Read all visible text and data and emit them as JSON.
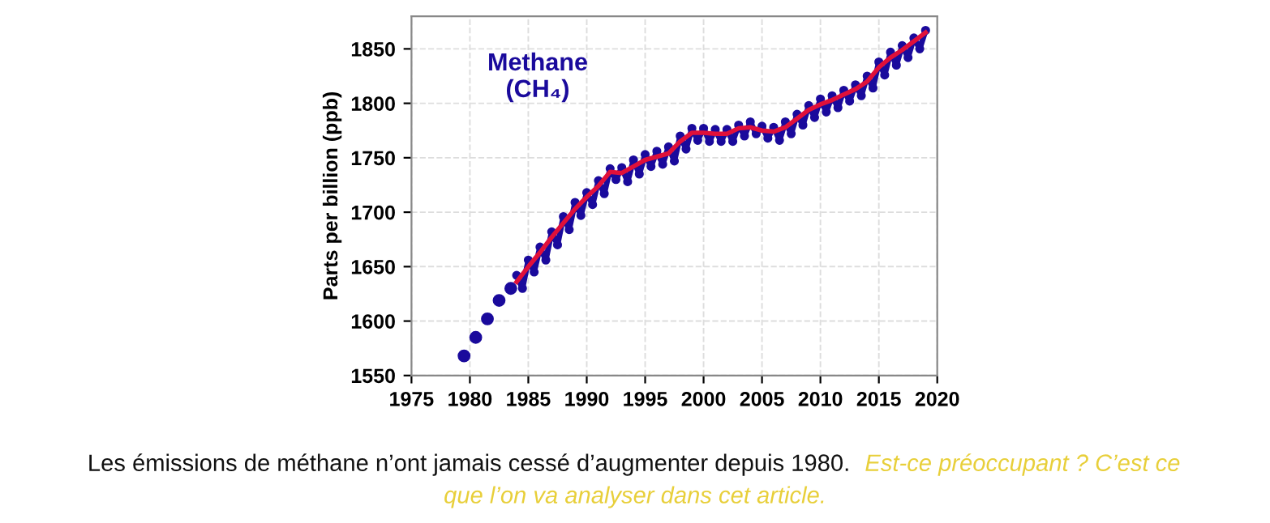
{
  "chart_data": {
    "type": "line",
    "ylabel": "Parts per billion (ppb)",
    "annotations": [
      "Methane\n(CH₄)",
      "Les émissions de méthane n’ont jamais cessé d’augmenter depuis 1980.",
      "Est-ce préoccupant ? C’est ce que l’on va analyser dans cet article."
    ],
    "series": [
      {
        "type": "scatter",
        "color": "#1a0a9c",
        "x": [
          1979.5,
          1980.5,
          1981.5,
          1982.5,
          1983.5
        ],
        "values": [
          1568,
          1585,
          1602,
          1619,
          1630
        ]
      },
      {
        "color": "#1a0a9c",
        "marker": "circle",
        "x": [
          1984.0,
          1984.5,
          1985.0,
          1985.5,
          1986.0,
          1986.5,
          1987.0,
          1987.5,
          1988.0,
          1988.5,
          1989.0,
          1989.5,
          1990.0,
          1990.5,
          1991.0,
          1991.5,
          1992.0,
          1992.5,
          1993.0,
          1993.5,
          1994.0,
          1994.5,
          1995.0,
          1995.5,
          1996.0,
          1996.5,
          1997.0,
          1997.5,
          1998.0,
          1998.5,
          1999.0,
          1999.5,
          2000.0,
          2000.5,
          2001.0,
          2001.5,
          2002.0,
          2002.5,
          2003.0,
          2003.5,
          2004.0,
          2004.5,
          2005.0,
          2005.5,
          2006.0,
          2006.5,
          2007.0,
          2007.5,
          2008.0,
          2008.5,
          2009.0,
          2009.5,
          2010.0,
          2010.5,
          2011.0,
          2011.5,
          2012.0,
          2012.5,
          2013.0,
          2013.5,
          2014.0,
          2014.5,
          2015.0,
          2015.5,
          2016.0,
          2016.5,
          2017.0,
          2017.5,
          2018.0,
          2018.5,
          2019.0
        ],
        "values": [
          1642,
          1630,
          1656,
          1645,
          1668,
          1656,
          1682,
          1670,
          1696,
          1684,
          1709,
          1697,
          1718,
          1707,
          1729,
          1717,
          1740,
          1730,
          1741,
          1728,
          1748,
          1735,
          1753,
          1742,
          1756,
          1744,
          1760,
          1747,
          1770,
          1758,
          1777,
          1766,
          1777,
          1765,
          1776,
          1765,
          1776,
          1765,
          1780,
          1770,
          1783,
          1772,
          1779,
          1768,
          1778,
          1766,
          1783,
          1772,
          1790,
          1780,
          1798,
          1787,
          1804,
          1792,
          1807,
          1796,
          1812,
          1802,
          1817,
          1807,
          1825,
          1814,
          1838,
          1826,
          1847,
          1835,
          1853,
          1842,
          1860,
          1850,
          1867
        ]
      },
      {
        "color": "#e0103a",
        "marker": "none",
        "x": [
          1984,
          1985,
          1986,
          1987,
          1988,
          1989,
          1990,
          1991,
          1992,
          1993,
          1994,
          1995,
          1996,
          1997,
          1998,
          1999,
          2000,
          2001,
          2002,
          2003,
          2004,
          2005,
          2006,
          2007,
          2008,
          2009,
          2010,
          2011,
          2012,
          2013,
          2014,
          2015,
          2016,
          2017,
          2018,
          2019
        ],
        "values": [
          1636,
          1650,
          1663,
          1677,
          1690,
          1703,
          1714,
          1724,
          1737,
          1736,
          1742,
          1748,
          1751,
          1754,
          1765,
          1773,
          1773,
          1772,
          1772,
          1777,
          1778,
          1775,
          1774,
          1778,
          1786,
          1794,
          1799,
          1803,
          1808,
          1813,
          1820,
          1833,
          1842,
          1849,
          1857,
          1865
        ]
      }
    ],
    "xlim": [
      1975,
      2020
    ],
    "xticks": [
      1975,
      1980,
      1985,
      1990,
      1995,
      2000,
      2005,
      2010,
      2015,
      2020
    ],
    "ylim": [
      1550,
      1880
    ],
    "yticks": [
      1550,
      1600,
      1650,
      1700,
      1750,
      1800,
      1850
    ],
    "grid": true
  }
}
